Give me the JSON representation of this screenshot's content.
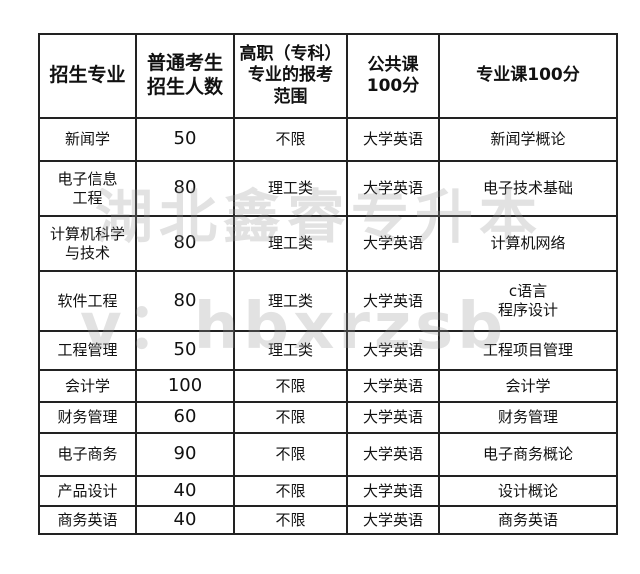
{
  "headers": [
    "招生专业",
    "普通考生\n招生人数",
    "高职（专科）\n专业的报考\n范围",
    "公共课\n100分",
    "专业课100分"
  ],
  "rows": [
    [
      "新闻学",
      "50",
      "不限",
      "大学英语",
      "新闻学概论"
    ],
    [
      "电子信息\n工程",
      "80",
      "理工类",
      "大学英语",
      "电子技术基础"
    ],
    [
      "计算机科学\n与技术",
      "80",
      "理工类",
      "大学英语",
      "计算机网络"
    ],
    [
      "软件工程",
      "80",
      "理工类",
      "大学英语",
      "c语言\n程序设计"
    ],
    [
      "工程管理",
      "50",
      "理工类",
      "大学英语",
      "工程项目管理"
    ],
    [
      "会计学",
      "100",
      "不限",
      "大学英语",
      "会计学"
    ],
    [
      "财务管理",
      "60",
      "不限",
      "大学英语",
      "财务管理"
    ],
    [
      "电子商务",
      "90",
      "不限",
      "大学英语",
      "电子商务概论"
    ],
    [
      "产品设计",
      "40",
      "不限",
      "大学英语",
      "设计概论"
    ],
    [
      "商务英语",
      "40",
      "不限",
      "大学英语",
      "商务英语"
    ]
  ],
  "watermark": {
    "line1": "湖北鑫睿专升本",
    "line2": "v：hbxrzsb"
  }
}
